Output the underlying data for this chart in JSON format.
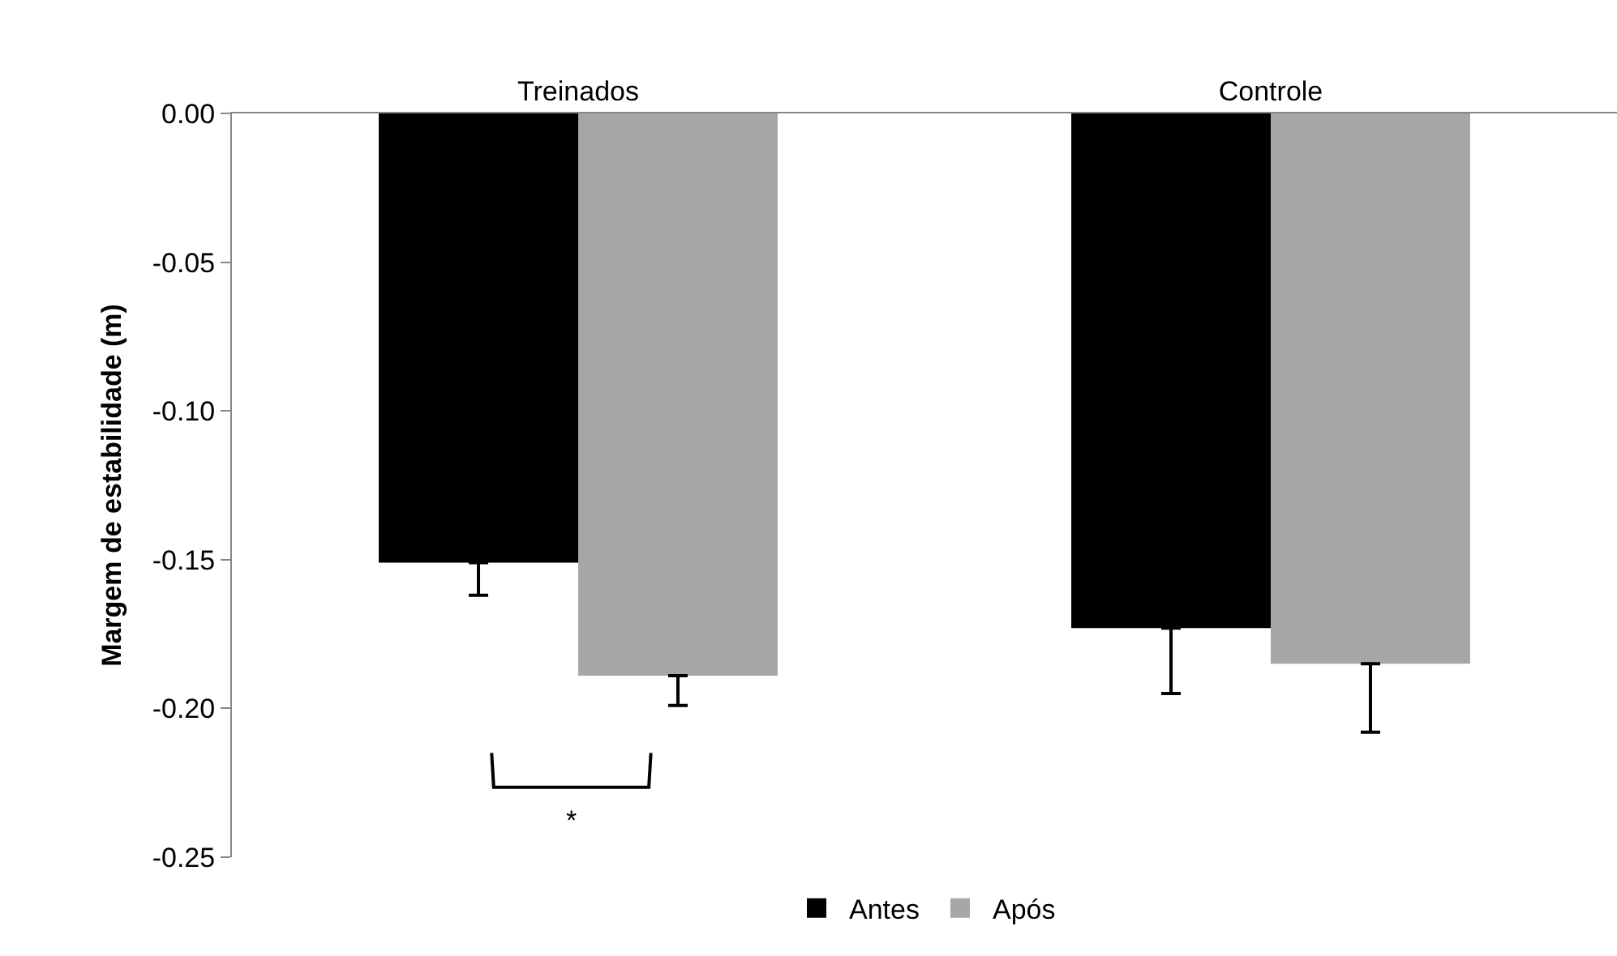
{
  "chart_data": {
    "type": "bar",
    "categories": [
      "Treinados",
      "Controle"
    ],
    "ylabel": "Margem de estabilidade (m)",
    "series": [
      {
        "name": "Antes",
        "color": "#000000",
        "values": [
          -0.151,
          -0.173
        ],
        "errors": [
          [
            -0.162,
            -0.151
          ],
          [
            -0.195,
            -0.173
          ]
        ]
      },
      {
        "name": "Após",
        "color": "#a6a6a6",
        "values": [
          -0.189,
          -0.185
        ],
        "errors": [
          [
            -0.199,
            -0.189
          ],
          [
            -0.208,
            -0.185
          ]
        ]
      }
    ],
    "ylim": [
      -0.25,
      0
    ],
    "yticks": [
      {
        "value": 0,
        "label": "0.00"
      },
      {
        "value": -0.05,
        "label": "-0.05"
      },
      {
        "value": -0.1,
        "label": "-0.10"
      },
      {
        "value": -0.15,
        "label": "-0.15"
      },
      {
        "value": -0.2,
        "label": "-0.20"
      },
      {
        "value": -0.25,
        "label": "-0.25"
      }
    ],
    "annotations": [
      "*"
    ],
    "grid": false,
    "legend": "bottom"
  }
}
